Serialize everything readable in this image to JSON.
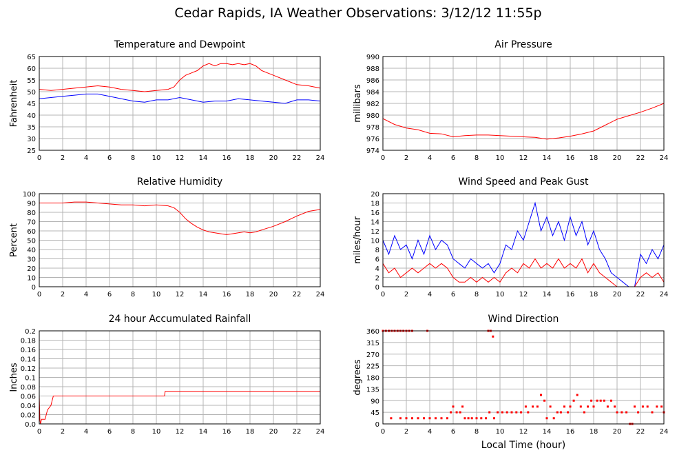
{
  "page": {
    "title": "Cedar Rapids, IA Weather Observations: 3/12/12 11:55p",
    "xlabel": "Local Time (hour)"
  },
  "colors": {
    "red": "#ff0000",
    "blue": "#0000ff",
    "grid": "#b4b4b4",
    "frame": "#000000"
  },
  "chart_data": [
    {
      "id": "temp",
      "type": "line",
      "title": "Temperature and Dewpoint",
      "ylabel": "Fahrenheit",
      "xlim": [
        0,
        24
      ],
      "ylim": [
        25,
        65
      ],
      "x_ticks": [
        0,
        2,
        4,
        6,
        8,
        10,
        12,
        14,
        16,
        18,
        20,
        22,
        24
      ],
      "y_ticks": [
        25,
        30,
        35,
        40,
        45,
        50,
        55,
        60,
        65
      ],
      "series": [
        {
          "color": "#ff0000",
          "x": [
            0,
            1,
            2,
            3,
            4,
            5,
            6,
            7,
            8,
            9,
            10,
            11,
            11.5,
            12,
            12.5,
            13,
            13.5,
            14,
            14.5,
            15,
            15.5,
            16,
            16.5,
            17,
            17.5,
            18,
            18.5,
            19,
            19.5,
            20,
            21,
            22,
            23,
            24
          ],
          "values": [
            51,
            50.5,
            51,
            51.5,
            52,
            52.5,
            52,
            51,
            50.5,
            50,
            50.5,
            51,
            52,
            55,
            57,
            58,
            59,
            61,
            62,
            61,
            62,
            62,
            61.5,
            62,
            61.5,
            62,
            61,
            59,
            58,
            57,
            55,
            53,
            52.5,
            51.5
          ]
        },
        {
          "color": "#0000ff",
          "x": [
            0,
            1,
            2,
            3,
            4,
            5,
            6,
            7,
            8,
            9,
            10,
            11,
            12,
            13,
            14,
            15,
            16,
            17,
            18,
            19,
            20,
            21,
            22,
            23,
            24
          ],
          "values": [
            47,
            47.5,
            48,
            48.5,
            49,
            49,
            48,
            47,
            46,
            45.5,
            46.5,
            46.5,
            47.5,
            46.5,
            45.5,
            46,
            46,
            47,
            46.5,
            46,
            45.5,
            45,
            46.5,
            46.5,
            46
          ]
        }
      ]
    },
    {
      "id": "pressure",
      "type": "line",
      "title": "Air Pressure",
      "ylabel": "millibars",
      "xlim": [
        0,
        24
      ],
      "ylim": [
        974,
        990
      ],
      "x_ticks": [
        0,
        2,
        4,
        6,
        8,
        10,
        12,
        14,
        16,
        18,
        20,
        22,
        24
      ],
      "y_ticks": [
        974,
        976,
        978,
        980,
        982,
        984,
        986,
        988,
        990
      ],
      "series": [
        {
          "color": "#ff0000",
          "x": [
            0,
            1,
            2,
            3,
            4,
            5,
            6,
            7,
            8,
            9,
            10,
            11,
            12,
            13,
            14,
            15,
            16,
            17,
            18,
            19,
            20,
            21,
            22,
            23,
            24
          ],
          "values": [
            979.4,
            978.4,
            977.8,
            977.5,
            976.9,
            976.8,
            976.3,
            976.5,
            976.6,
            976.6,
            976.5,
            976.4,
            976.3,
            976.2,
            975.9,
            976.1,
            976.4,
            976.8,
            977.3,
            978.3,
            979.3,
            979.9,
            980.5,
            981.2,
            982
          ]
        }
      ]
    },
    {
      "id": "humidity",
      "type": "line",
      "title": "Relative Humidity",
      "ylabel": "Percent",
      "xlim": [
        0,
        24
      ],
      "ylim": [
        0,
        100
      ],
      "x_ticks": [
        0,
        2,
        4,
        6,
        8,
        10,
        12,
        14,
        16,
        18,
        20,
        22,
        24
      ],
      "y_ticks": [
        0,
        10,
        20,
        30,
        40,
        50,
        60,
        70,
        80,
        90,
        100
      ],
      "series": [
        {
          "color": "#ff0000",
          "x": [
            0,
            1,
            2,
            3,
            4,
            5,
            6,
            7,
            8,
            9,
            10,
            11,
            11.5,
            12,
            12.5,
            13,
            13.5,
            14,
            14.5,
            15,
            15.5,
            16,
            16.5,
            17,
            17.5,
            18,
            18.5,
            19,
            20,
            21,
            22,
            23,
            24
          ],
          "values": [
            90,
            90,
            90,
            91,
            91,
            90,
            89,
            88,
            88,
            87,
            88,
            87,
            85,
            80,
            73,
            68,
            64,
            61,
            59,
            58,
            57,
            56,
            57,
            58,
            59,
            58,
            59,
            61,
            65,
            70,
            76,
            81,
            83
          ]
        }
      ]
    },
    {
      "id": "wind",
      "type": "line",
      "title": "Wind Speed and Peak Gust",
      "ylabel": "miles/hour",
      "xlim": [
        0,
        24
      ],
      "ylim": [
        0,
        20
      ],
      "x_ticks": [
        0,
        2,
        4,
        6,
        8,
        10,
        12,
        14,
        16,
        18,
        20,
        22,
        24
      ],
      "y_ticks": [
        0,
        2,
        4,
        6,
        8,
        10,
        12,
        14,
        16,
        18,
        20
      ],
      "series": [
        {
          "color": "#0000ff",
          "x": [
            0,
            0.5,
            1,
            1.5,
            2,
            2.5,
            3,
            3.5,
            4,
            4.5,
            5,
            5.5,
            6,
            6.5,
            7,
            7.5,
            8,
            8.5,
            9,
            9.5,
            10,
            10.5,
            11,
            11.5,
            12,
            12.5,
            13,
            13.5,
            14,
            14.5,
            15,
            15.5,
            16,
            16.5,
            17,
            17.5,
            18,
            18.5,
            19,
            19.5,
            20,
            20.5,
            21,
            21.5,
            22,
            22.5,
            23,
            23.5,
            24
          ],
          "values": [
            10,
            7,
            11,
            8,
            9,
            6,
            10,
            7,
            11,
            8,
            10,
            9,
            6,
            5,
            4,
            6,
            5,
            4,
            5,
            3,
            5,
            9,
            8,
            12,
            10,
            14,
            18,
            12,
            15,
            11,
            14,
            10,
            15,
            11,
            14,
            9,
            12,
            8,
            6,
            3,
            2,
            1,
            0,
            0,
            7,
            5,
            8,
            6,
            9
          ]
        },
        {
          "color": "#ff0000",
          "x": [
            0,
            0.5,
            1,
            1.5,
            2,
            2.5,
            3,
            3.5,
            4,
            4.5,
            5,
            5.5,
            6,
            6.5,
            7,
            7.5,
            8,
            8.5,
            9,
            9.5,
            10,
            10.5,
            11,
            11.5,
            12,
            12.5,
            13,
            13.5,
            14,
            14.5,
            15,
            15.5,
            16,
            16.5,
            17,
            17.5,
            18,
            18.5,
            19,
            19.5,
            20,
            20.5,
            21,
            21.5,
            22,
            22.5,
            23,
            23.5,
            24
          ],
          "values": [
            5,
            3,
            4,
            2,
            3,
            4,
            3,
            4,
            5,
            4,
            5,
            4,
            2,
            1,
            1,
            2,
            1,
            2,
            1,
            2,
            1,
            3,
            4,
            3,
            5,
            4,
            6,
            4,
            5,
            4,
            6,
            4,
            5,
            4,
            6,
            3,
            5,
            3,
            2,
            1,
            0,
            0,
            0,
            0,
            2,
            3,
            2,
            3,
            1
          ]
        }
      ]
    },
    {
      "id": "rain",
      "type": "line",
      "title": "24 hour Accumulated Rainfall",
      "ylabel": "Inches",
      "xlim": [
        0,
        24
      ],
      "ylim": [
        0,
        0.2
      ],
      "x_ticks": [
        0,
        2,
        4,
        6,
        8,
        10,
        12,
        14,
        16,
        18,
        20,
        22,
        24
      ],
      "y_ticks": [
        "0.0",
        "0.02",
        "0.04",
        "0.06",
        "0.08",
        "0.1",
        "0.12",
        "0.14",
        "0.16",
        "0.18",
        "0.2"
      ],
      "series": [
        {
          "color": "#ff0000",
          "x": [
            0,
            0.05,
            0.1,
            0.2,
            0.5,
            0.7,
            1,
            1.2,
            10.7,
            10.75,
            24
          ],
          "values": [
            0.06,
            0.01,
            0.0,
            0.01,
            0.01,
            0.03,
            0.04,
            0.06,
            0.06,
            0.07,
            0.07
          ]
        }
      ]
    },
    {
      "id": "direction",
      "type": "scatter",
      "title": "Wind Direction",
      "ylabel": "degrees",
      "xlim": [
        0,
        24
      ],
      "ylim": [
        0,
        360
      ],
      "x_ticks": [
        0,
        2,
        4,
        6,
        8,
        10,
        12,
        14,
        16,
        18,
        20,
        22,
        24
      ],
      "y_ticks": [
        0,
        45,
        90,
        135,
        180,
        225,
        270,
        315,
        360
      ],
      "series": [
        {
          "color": "#ff0000",
          "points": [
            [
              0,
              360
            ],
            [
              0.25,
              360
            ],
            [
              0.5,
              360
            ],
            [
              0.75,
              360
            ],
            [
              1,
              360
            ],
            [
              1.25,
              360
            ],
            [
              1.5,
              360
            ],
            [
              1.75,
              360
            ],
            [
              2,
              360
            ],
            [
              2.25,
              360
            ],
            [
              2.5,
              360
            ],
            [
              3.8,
              360
            ],
            [
              0.7,
              22
            ],
            [
              1.5,
              22
            ],
            [
              2,
              22
            ],
            [
              2.5,
              22
            ],
            [
              3,
              22
            ],
            [
              3.5,
              22
            ],
            [
              4,
              22
            ],
            [
              4.5,
              22
            ],
            [
              5,
              22
            ],
            [
              5.5,
              22
            ],
            [
              5.8,
              45
            ],
            [
              6,
              67
            ],
            [
              6.3,
              45
            ],
            [
              6.6,
              45
            ],
            [
              6.8,
              67
            ],
            [
              7,
              22
            ],
            [
              7.3,
              22
            ],
            [
              7.6,
              22
            ],
            [
              8,
              22
            ],
            [
              8.4,
              22
            ],
            [
              8.8,
              22
            ],
            [
              9,
              360
            ],
            [
              9.2,
              360
            ],
            [
              9.4,
              338
            ],
            [
              9.1,
              45
            ],
            [
              9.5,
              22
            ],
            [
              9.8,
              45
            ],
            [
              10.2,
              45
            ],
            [
              10.6,
              45
            ],
            [
              11,
              45
            ],
            [
              11.4,
              45
            ],
            [
              11.8,
              45
            ],
            [
              12.2,
              67
            ],
            [
              12.4,
              45
            ],
            [
              12.8,
              67
            ],
            [
              13.2,
              67
            ],
            [
              13.5,
              112
            ],
            [
              13.8,
              90
            ],
            [
              14,
              22
            ],
            [
              14.3,
              67
            ],
            [
              14.6,
              22
            ],
            [
              14.9,
              45
            ],
            [
              15.2,
              45
            ],
            [
              15.5,
              67
            ],
            [
              15.8,
              45
            ],
            [
              16,
              67
            ],
            [
              16.3,
              90
            ],
            [
              16.6,
              112
            ],
            [
              16.9,
              67
            ],
            [
              17.2,
              45
            ],
            [
              17.5,
              67
            ],
            [
              17.8,
              90
            ],
            [
              18,
              67
            ],
            [
              18.3,
              90
            ],
            [
              18.6,
              90
            ],
            [
              18.9,
              90
            ],
            [
              19.2,
              67
            ],
            [
              19.5,
              90
            ],
            [
              19.8,
              67
            ],
            [
              20,
              45
            ],
            [
              20.4,
              45
            ],
            [
              20.8,
              45
            ],
            [
              21.1,
              0
            ],
            [
              21.3,
              0
            ],
            [
              21.5,
              67
            ],
            [
              21.8,
              45
            ],
            [
              22.2,
              67
            ],
            [
              22.6,
              67
            ],
            [
              23,
              45
            ],
            [
              23.4,
              67
            ],
            [
              23.8,
              67
            ],
            [
              24,
              45
            ]
          ]
        }
      ]
    }
  ]
}
